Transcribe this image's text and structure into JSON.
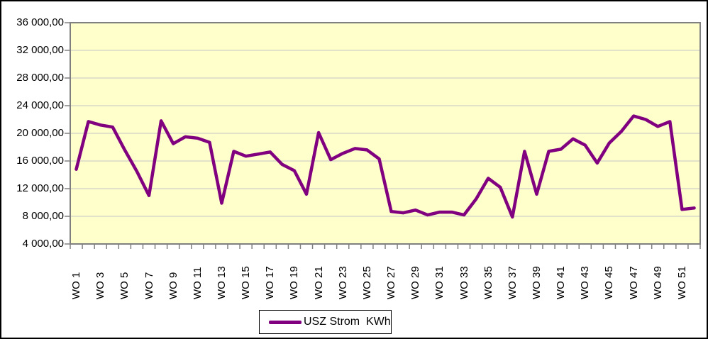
{
  "chart_data": {
    "type": "line",
    "title": "",
    "xlabel": "",
    "ylabel": "",
    "categories": [
      "WO 1",
      "WO 2",
      "WO 3",
      "WO 4",
      "WO 5",
      "WO 6",
      "WO 7",
      "WO 8",
      "WO 9",
      "WO 10",
      "WO 11",
      "WO 12",
      "WO 13",
      "WO 14",
      "WO 15",
      "WO 16",
      "WO 17",
      "WO 18",
      "WO 19",
      "WO 20",
      "WO 21",
      "WO 22",
      "WO 23",
      "WO 24",
      "WO 25",
      "WO 26",
      "WO 27",
      "WO 28",
      "WO 29",
      "WO 30",
      "WO 31",
      "WO 32",
      "WO 33",
      "WO 34",
      "WO 35",
      "WO 36",
      "WO 37",
      "WO 38",
      "WO 39",
      "WO 40",
      "WO 41",
      "WO 42",
      "WO 43",
      "WO 44",
      "WO 45",
      "WO 46",
      "WO 47",
      "WO 48",
      "WO 49",
      "WO 50",
      "WO 51",
      "WO 52"
    ],
    "x_tick_labels": [
      "WO 1",
      "WO 3",
      "WO 5",
      "WO 7",
      "WO 9",
      "WO 11",
      "WO 13",
      "WO 15",
      "WO 17",
      "WO 19",
      "WO 21",
      "WO 23",
      "WO 25",
      "WO 27",
      "WO 29",
      "WO 31",
      "WO 33",
      "WO 35",
      "WO 37",
      "WO 39",
      "WO 41",
      "WO 43",
      "WO 45",
      "WO 47",
      "WO 49",
      "WO 51"
    ],
    "x_tick_label_every": 2,
    "series": [
      {
        "name": "USZ Strom  KWh",
        "color": "#800080",
        "values": [
          14800,
          21700,
          21200,
          20900,
          17600,
          14500,
          11000,
          21800,
          18500,
          19500,
          19300,
          18700,
          9900,
          17400,
          16700,
          17000,
          17300,
          15500,
          14600,
          11200,
          20100,
          16200,
          17100,
          17800,
          17600,
          16300,
          8700,
          8500,
          8900,
          8200,
          8600,
          8600,
          8200,
          10500,
          13500,
          12200,
          7900,
          17400,
          11200,
          17400,
          17700,
          19200,
          18300,
          15700,
          18600,
          20300,
          22500,
          22000,
          21000,
          21700,
          9000,
          9200
        ]
      }
    ],
    "ylim": [
      4000,
      36000
    ],
    "ytick_step": 4000,
    "y_tick_labels": [
      "36 000,00",
      "32 000,00",
      "28 000,00",
      "24 000,00",
      "20 000,00",
      "16 000,00",
      "12 000,00",
      "8 000,00",
      "4 000,00"
    ],
    "grid": true,
    "legend_position": "bottom",
    "plot_bg": "#FFFFCC",
    "gridline_color": "#C6C6C6",
    "axis_color": "#808080"
  }
}
